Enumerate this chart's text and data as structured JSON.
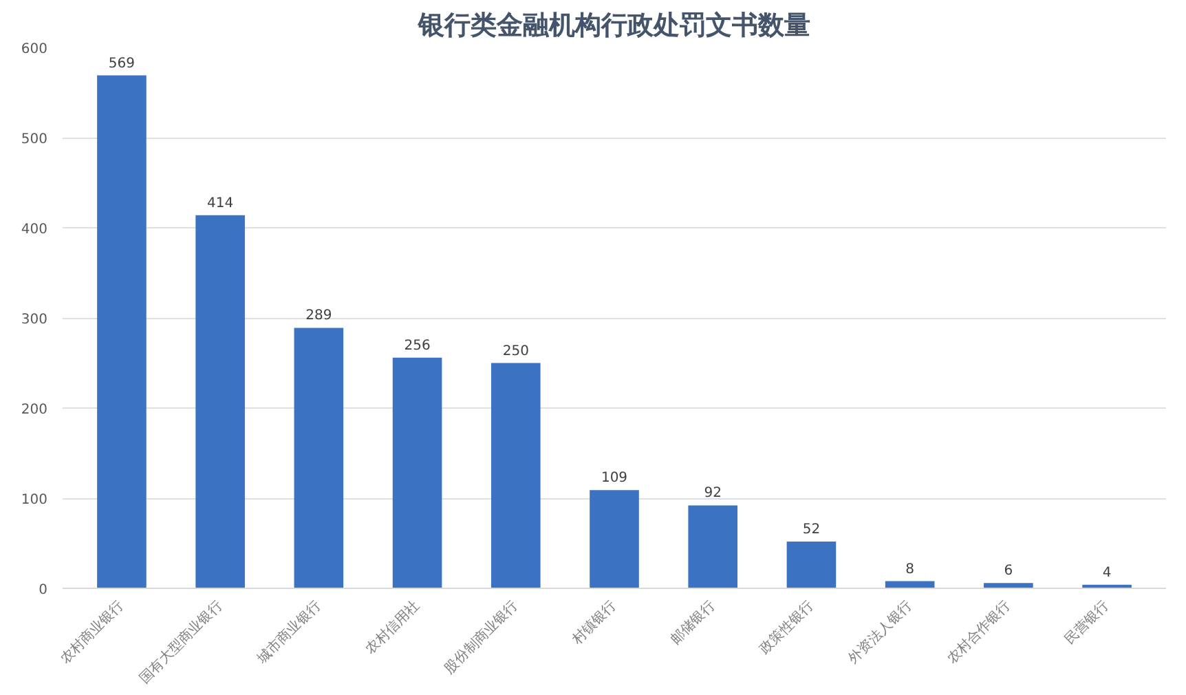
{
  "chart_data": {
    "type": "bar",
    "title": "银行类金融机构行政处罚文书数量",
    "categories": [
      "农村商业银行",
      "国有大型商业银行",
      "城市商业银行",
      "农村信用社",
      "股份制商业银行",
      "村镇银行",
      "邮储银行",
      "政策性银行",
      "外资法人银行",
      "农村合作银行",
      "民营银行"
    ],
    "values": [
      569,
      414,
      289,
      256,
      250,
      109,
      92,
      52,
      8,
      6,
      4
    ],
    "color": "#3b72c2",
    "ylim": [
      0,
      600
    ],
    "yticks": [
      0,
      100,
      200,
      300,
      400,
      500,
      600
    ],
    "grid": "y",
    "data_labels": true
  }
}
